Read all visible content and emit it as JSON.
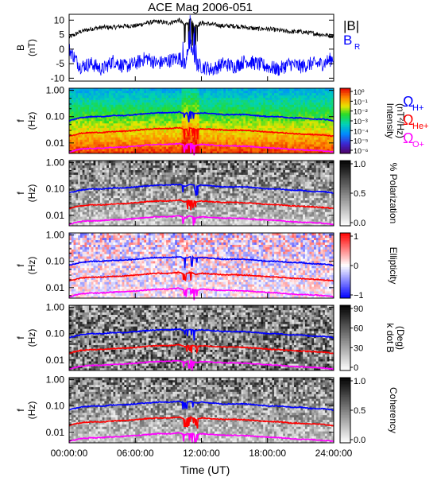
{
  "title": "ACE Mag 2006-051",
  "x_axis": {
    "label": "Time (UT)",
    "ticks": [
      "00:00:00",
      "06:00:00",
      "12:00:00",
      "18:00:00",
      "24:00:00"
    ],
    "tick_hours": [
      0,
      6,
      12,
      18,
      24
    ]
  },
  "panels": {
    "mag": {
      "ylabel": "B",
      "yunit": "(nT)",
      "yticks": [
        "10",
        "5",
        "0",
        "-5",
        "-10"
      ],
      "legend_total": "|B|",
      "legend_radial": "B",
      "legend_radial_sub": "R"
    },
    "spectral": [
      {
        "name": "intensity",
        "ylabel": "f",
        "yunit": "(Hz)",
        "yticks": [
          "1.00",
          "0.10",
          "0.01"
        ],
        "cbar_title": "Intensity",
        "cbar_unit": "(nT²/Hz)",
        "cbar_ticks": [
          "10⁰",
          "10⁻¹",
          "10⁻²",
          "10⁻³",
          "10⁻⁴",
          "10⁻⁵",
          "10⁻⁶"
        ],
        "colormap": "rainbow"
      },
      {
        "name": "polarization",
        "ylabel": "f",
        "yunit": "(Hz)",
        "yticks": [
          "1.00",
          "0.10",
          "0.01"
        ],
        "cbar_title": "% Polarization",
        "cbar_unit": "",
        "cbar_ticks": [
          "1.0",
          "0.5",
          "0.0"
        ],
        "colormap": "gray"
      },
      {
        "name": "ellipticity",
        "ylabel": "f",
        "yunit": "(Hz)",
        "yticks": [
          "1.00",
          "0.10",
          "0.01"
        ],
        "cbar_title": "Ellipticity",
        "cbar_unit": "",
        "cbar_ticks": [
          "1",
          "0",
          "−1"
        ],
        "colormap": "bwr"
      },
      {
        "name": "kdotb",
        "ylabel": "f",
        "yunit": "(Hz)",
        "yticks": [
          "1.00",
          "0.10",
          "0.01"
        ],
        "cbar_title": "k dot B",
        "cbar_unit": "(Deg)",
        "cbar_ticks": [
          "90",
          "60",
          "30",
          "0"
        ],
        "colormap": "gray"
      },
      {
        "name": "coherency",
        "ylabel": "f",
        "yunit": "(Hz)",
        "yticks": [
          "1.00",
          "0.10",
          "0.01"
        ],
        "cbar_title": "Coherency",
        "cbar_unit": "",
        "cbar_ticks": [
          "1.0",
          "0.5",
          "0.0"
        ],
        "colormap": "gray"
      }
    ]
  },
  "gyro_legend": [
    {
      "symbol": "Ω",
      "sub": "H+",
      "color": "#0000ff"
    },
    {
      "symbol": "Ω",
      "sub": "He+",
      "color": "#ff0000"
    },
    {
      "symbol": "Ω",
      "sub": "O+",
      "color": "#ff00ff"
    }
  ],
  "chart_data": {
    "type": "line",
    "title": "ACE Mag 2006-051",
    "xlabel": "Time (UT)",
    "x_hours": [
      0,
      1,
      2,
      3,
      4,
      5,
      6,
      7,
      8,
      9,
      10,
      10.5,
      11,
      11.5,
      12,
      13,
      14,
      15,
      16,
      17,
      18,
      19,
      20,
      21,
      22,
      23,
      24
    ],
    "B_panel": {
      "ylabel": "B (nT)",
      "ylim": [
        -11,
        12
      ],
      "series": [
        {
          "name": "|B|",
          "color": "#000000",
          "values": [
            4,
            6,
            7,
            7.5,
            7.5,
            8,
            8,
            9,
            9.5,
            9,
            10,
            8,
            10,
            8,
            9,
            8.5,
            8,
            8,
            7.5,
            7,
            7,
            6.5,
            6,
            6,
            5.5,
            5,
            4.5
          ]
        },
        {
          "name": "B_R",
          "color": "#0000ff",
          "values": [
            0,
            -6,
            -5,
            -7,
            -4,
            -6,
            -5,
            -3,
            -5,
            -4,
            -3,
            -5,
            2,
            -5,
            -6,
            -7,
            -5,
            -6,
            -4,
            -5,
            -6,
            -7,
            -5,
            -6,
            -5,
            -5,
            -3
          ]
        }
      ]
    },
    "spectral_panels": {
      "ylim_hz": [
        0.004,
        1.2
      ],
      "yscale": "log",
      "gyrofrequencies": [
        {
          "name": "Ω_H+",
          "color": "#0000ff",
          "values": [
            0.07,
            0.09,
            0.1,
            0.1,
            0.11,
            0.11,
            0.12,
            0.13,
            0.14,
            0.14,
            0.15,
            0.13,
            0.15,
            0.13,
            0.14,
            0.13,
            0.12,
            0.12,
            0.12,
            0.11,
            0.1,
            0.1,
            0.09,
            0.09,
            0.08,
            0.08,
            0.07
          ]
        },
        {
          "name": "Ω_He+",
          "color": "#ff0000",
          "values": [
            0.018,
            0.023,
            0.025,
            0.025,
            0.027,
            0.028,
            0.03,
            0.033,
            0.035,
            0.035,
            0.038,
            0.032,
            0.038,
            0.032,
            0.035,
            0.033,
            0.031,
            0.031,
            0.03,
            0.028,
            0.026,
            0.025,
            0.023,
            0.022,
            0.021,
            0.02,
            0.018
          ]
        },
        {
          "name": "Ω_O+",
          "color": "#ff00ff",
          "values": [
            0.0045,
            0.0058,
            0.0062,
            0.0063,
            0.0068,
            0.007,
            0.0075,
            0.0082,
            0.0088,
            0.0088,
            0.0095,
            0.008,
            0.0095,
            0.008,
            0.0088,
            0.0083,
            0.0078,
            0.0078,
            0.0075,
            0.007,
            0.0066,
            0.0063,
            0.0058,
            0.0055,
            0.0053,
            0.005,
            0.0045
          ]
        }
      ]
    }
  }
}
